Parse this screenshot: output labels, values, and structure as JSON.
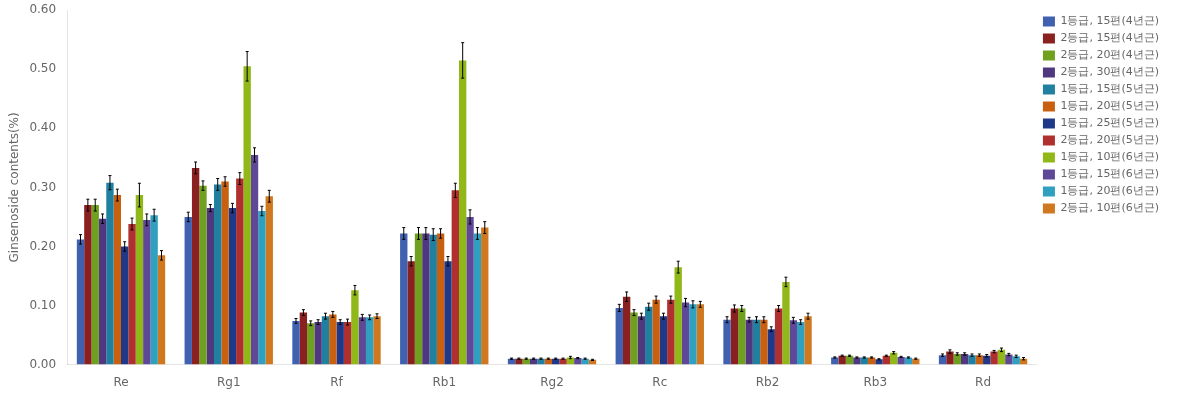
{
  "chart_data": {
    "type": "bar",
    "ylabel": "Ginsenoside contents(%)",
    "categories": [
      "Re",
      "Rg1",
      "Rf",
      "Rb1",
      "Rg2",
      "Rc",
      "Rb2",
      "Rb3",
      "Rd"
    ],
    "series": [
      {
        "name": "1등급, 15편(4년근)",
        "color": "#4060B0",
        "values": [
          0.212,
          0.25,
          0.074,
          0.222,
          0.01,
          0.096,
          0.076,
          0.012,
          0.016
        ],
        "errors": [
          0.008,
          0.008,
          0.004,
          0.01,
          0.001,
          0.006,
          0.005,
          0.001,
          0.002
        ]
      },
      {
        "name": "2등급, 15편(4년근)",
        "color": "#8B2020",
        "values": [
          0.27,
          0.333,
          0.088,
          0.175,
          0.01,
          0.115,
          0.095,
          0.015,
          0.022
        ],
        "errors": [
          0.01,
          0.01,
          0.005,
          0.008,
          0.001,
          0.008,
          0.006,
          0.001,
          0.003
        ]
      },
      {
        "name": "2등급, 20편(4년근)",
        "color": "#70A020",
        "values": [
          0.27,
          0.303,
          0.07,
          0.222,
          0.01,
          0.088,
          0.095,
          0.015,
          0.018
        ],
        "errors": [
          0.01,
          0.008,
          0.004,
          0.01,
          0.001,
          0.005,
          0.005,
          0.001,
          0.002
        ]
      },
      {
        "name": "2등급, 30편(4년근)",
        "color": "#503880",
        "values": [
          0.247,
          0.265,
          0.072,
          0.222,
          0.01,
          0.082,
          0.076,
          0.012,
          0.018
        ],
        "errors": [
          0.008,
          0.006,
          0.004,
          0.01,
          0.001,
          0.005,
          0.004,
          0.001,
          0.002
        ]
      },
      {
        "name": "1등급, 15편(5년근)",
        "color": "#2080A0",
        "values": [
          0.308,
          0.305,
          0.082,
          0.22,
          0.01,
          0.098,
          0.076,
          0.012,
          0.016
        ],
        "errors": [
          0.012,
          0.01,
          0.005,
          0.01,
          0.001,
          0.006,
          0.005,
          0.001,
          0.002
        ]
      },
      {
        "name": "1등급, 20편(5년근)",
        "color": "#C86010",
        "values": [
          0.287,
          0.31,
          0.085,
          0.222,
          0.01,
          0.11,
          0.076,
          0.012,
          0.016
        ],
        "errors": [
          0.01,
          0.008,
          0.005,
          0.008,
          0.001,
          0.006,
          0.005,
          0.001,
          0.002
        ]
      },
      {
        "name": "1등급, 25편(5년근)",
        "color": "#203888",
        "values": [
          0.2,
          0.265,
          0.072,
          0.175,
          0.01,
          0.082,
          0.06,
          0.009,
          0.015
        ],
        "errors": [
          0.008,
          0.008,
          0.004,
          0.008,
          0.001,
          0.005,
          0.004,
          0.001,
          0.002
        ]
      },
      {
        "name": "2등급, 20편(5년근)",
        "color": "#B03030",
        "values": [
          0.238,
          0.315,
          0.072,
          0.295,
          0.01,
          0.11,
          0.095,
          0.015,
          0.022
        ],
        "errors": [
          0.01,
          0.01,
          0.005,
          0.012,
          0.001,
          0.006,
          0.005,
          0.001,
          0.002
        ]
      },
      {
        "name": "1등급, 10편(6년근)",
        "color": "#90B818",
        "values": [
          0.287,
          0.505,
          0.126,
          0.515,
          0.012,
          0.165,
          0.14,
          0.02,
          0.025
        ],
        "errors": [
          0.02,
          0.025,
          0.008,
          0.03,
          0.002,
          0.01,
          0.008,
          0.002,
          0.003
        ]
      },
      {
        "name": "1등급, 15편(6년근)",
        "color": "#604898",
        "values": [
          0.245,
          0.355,
          0.08,
          0.25,
          0.011,
          0.105,
          0.075,
          0.013,
          0.017
        ],
        "errors": [
          0.01,
          0.012,
          0.005,
          0.012,
          0.001,
          0.007,
          0.005,
          0.001,
          0.002
        ]
      },
      {
        "name": "1등급, 20편(6년근)",
        "color": "#30A0C0",
        "values": [
          0.253,
          0.26,
          0.08,
          0.222,
          0.01,
          0.102,
          0.072,
          0.012,
          0.014
        ],
        "errors": [
          0.01,
          0.008,
          0.004,
          0.01,
          0.001,
          0.006,
          0.004,
          0.001,
          0.002
        ]
      },
      {
        "name": "2등급, 10편(6년근)",
        "color": "#D07820",
        "values": [
          0.185,
          0.285,
          0.082,
          0.232,
          0.008,
          0.102,
          0.082,
          0.01,
          0.01
        ],
        "errors": [
          0.008,
          0.01,
          0.004,
          0.01,
          0.001,
          0.005,
          0.005,
          0.001,
          0.002
        ]
      }
    ],
    "ylim": [
      0,
      0.6
    ],
    "yticks": [
      {
        "value": 0,
        "label": "0.00"
      },
      {
        "value": 0.1,
        "label": "0.10"
      },
      {
        "value": 0.2,
        "label": "0.20"
      },
      {
        "value": 0.3,
        "label": "0.30"
      },
      {
        "value": 0.4,
        "label": "0.40"
      },
      {
        "value": 0.5,
        "label": "0.50"
      },
      {
        "value": 0.6,
        "label": "0.60"
      }
    ],
    "grid": false,
    "legend": "right"
  }
}
